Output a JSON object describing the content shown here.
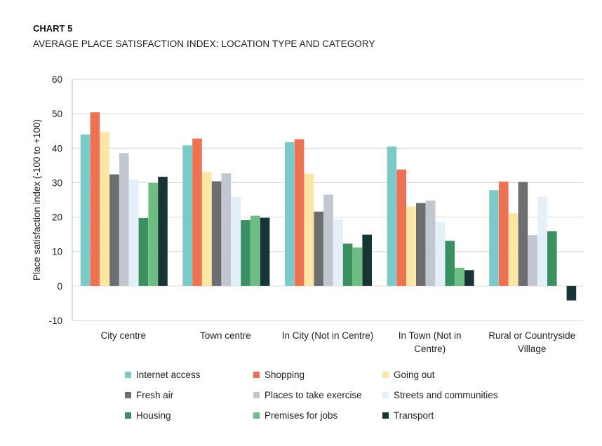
{
  "header": {
    "label": "CHART 5",
    "title": "AVERAGE PLACE SATISFACTION INDEX: LOCATION TYPE AND CATEGORY"
  },
  "chart_data": {
    "type": "bar",
    "title": "AVERAGE PLACE SATISFACTION INDEX: LOCATION TYPE AND CATEGORY",
    "xlabel": "",
    "ylabel": "Place satisfaction index (-100 to +100)",
    "ylim": [
      -10,
      60
    ],
    "yticks": [
      60,
      50,
      40,
      30,
      20,
      10,
      0,
      -10
    ],
    "grid": true,
    "legend_position": "bottom",
    "categories": [
      [
        "City centre"
      ],
      [
        "Town centre"
      ],
      [
        "In City (Not in Centre)"
      ],
      [
        "In Town (Not in",
        "Centre)"
      ],
      [
        "Rural or Countryside",
        "Village"
      ]
    ],
    "series": [
      {
        "name": "Internet access",
        "color": "#7cc9c9",
        "values": [
          44,
          40.8,
          41.8,
          40.5,
          27.8
        ]
      },
      {
        "name": "Shopping",
        "color": "#ee7152",
        "values": [
          50.4,
          42.8,
          42.6,
          33.8,
          30.3
        ]
      },
      {
        "name": "Going out",
        "color": "#fde6a4",
        "values": [
          44.6,
          33.1,
          32.6,
          23.1,
          21.1
        ]
      },
      {
        "name": "Fresh air",
        "color": "#6d6e70",
        "values": [
          32.4,
          30.4,
          21.6,
          24.1,
          30.2
        ]
      },
      {
        "name": "Places to take exercise",
        "color": "#c2c7cf",
        "values": [
          38.6,
          32.7,
          26.5,
          24.8,
          14.8
        ]
      },
      {
        "name": "Streets and communities",
        "color": "#e3f0f9",
        "values": [
          30.9,
          25.8,
          19.3,
          18.6,
          25.9
        ]
      },
      {
        "name": "Housing",
        "color": "#3b9062",
        "values": [
          19.7,
          19.1,
          12.3,
          13.1,
          15.9
        ]
      },
      {
        "name": "Premises for jobs",
        "color": "#6cbe82",
        "values": [
          29.9,
          20.4,
          11.2,
          5.3,
          0
        ]
      },
      {
        "name": "Transport",
        "color": "#173436",
        "values": [
          31.7,
          19.8,
          14.9,
          4.6,
          -4.2
        ]
      }
    ]
  }
}
